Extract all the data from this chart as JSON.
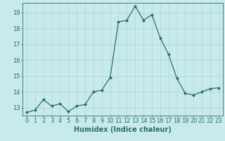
{
  "x": [
    0,
    1,
    2,
    3,
    4,
    5,
    6,
    7,
    8,
    9,
    10,
    11,
    12,
    13,
    14,
    15,
    16,
    17,
    18,
    19,
    20,
    21,
    22,
    23
  ],
  "y": [
    12.7,
    12.85,
    13.5,
    13.1,
    13.25,
    12.75,
    13.1,
    13.2,
    14.0,
    14.1,
    14.9,
    18.4,
    18.5,
    19.4,
    18.5,
    18.85,
    17.4,
    16.35,
    14.85,
    13.9,
    13.8,
    14.0,
    14.2,
    14.25
  ],
  "line_color": "#2d6e6e",
  "marker": "D",
  "marker_size": 2.0,
  "bg_color": "#c8eaea",
  "grid_color": "#aed4d4",
  "xlabel": "Humidex (Indice chaleur)",
  "xlim": [
    -0.5,
    23.5
  ],
  "ylim": [
    12.5,
    19.6
  ],
  "yticks": [
    13,
    14,
    15,
    16,
    17,
    18,
    19
  ],
  "xticks": [
    0,
    1,
    2,
    3,
    4,
    5,
    6,
    7,
    8,
    9,
    10,
    11,
    12,
    13,
    14,
    15,
    16,
    17,
    18,
    19,
    20,
    21,
    22,
    23
  ],
  "tick_color": "#2d6e6e",
  "axis_color": "#2d6e6e",
  "xlabel_fontsize": 7,
  "tick_fontsize": 6,
  "linewidth": 0.9
}
